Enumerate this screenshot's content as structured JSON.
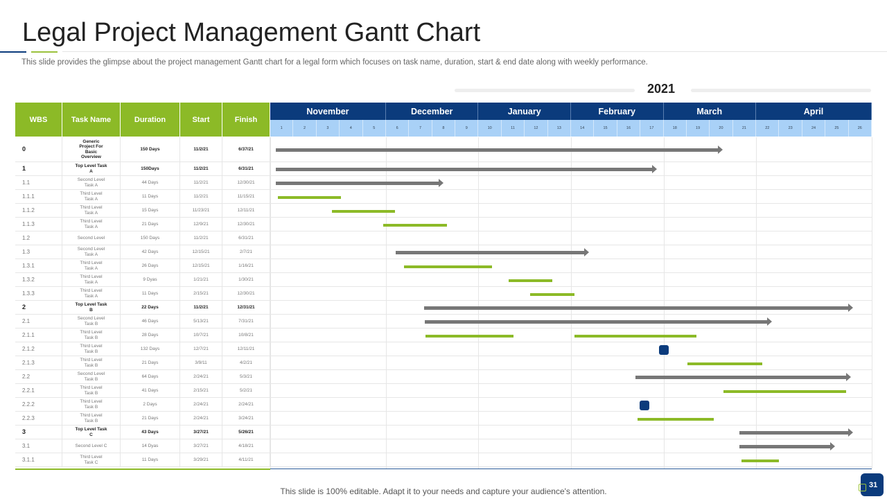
{
  "header": {
    "title": "Legal Project Management Gantt Chart",
    "subtitle": "This slide provides the glimpse about the project management Gantt chart for a legal form which focuses on task name, duration, start & end date along with weekly performance.",
    "year": "2021"
  },
  "footer": {
    "text": "This slide is 100% editable. Adapt it to your needs and capture your audience's attention.",
    "page": "31"
  },
  "colors": {
    "navy": "#0b3b7c",
    "green": "#8cba27",
    "week_bg": "#a9d1f7",
    "gray_bar": "#777777"
  },
  "table_headers": [
    "WBS",
    "Task Name",
    "Duration",
    "Start",
    "Finish"
  ],
  "chart_data": {
    "type": "bar",
    "orientation": "horizontal-gantt",
    "title": "2021",
    "x_unit": "week",
    "xlim": [
      1,
      27
    ],
    "months": [
      {
        "name": "November",
        "weeks": [
          1,
          2,
          3,
          4,
          5
        ]
      },
      {
        "name": "December",
        "weeks": [
          6,
          7,
          8,
          9
        ]
      },
      {
        "name": "January",
        "weeks": [
          10,
          11,
          12,
          13
        ]
      },
      {
        "name": "February",
        "weeks": [
          14,
          15,
          16,
          17
        ]
      },
      {
        "name": "March",
        "weeks": [
          18,
          19,
          20,
          21
        ]
      },
      {
        "name": "April",
        "weeks": [
          22,
          23,
          24,
          25,
          26
        ]
      }
    ],
    "tasks": [
      {
        "wbs": "0",
        "name": "Generic Project For Basic Overview",
        "duration": "150 Days",
        "start": "11/2/21",
        "finish": "6/37/21",
        "bold": true,
        "bars": [
          {
            "type": "summary",
            "from": 1.24,
            "to": 20.55
          }
        ]
      },
      {
        "wbs": "1",
        "name": "Top Level Task A",
        "duration": "150Days",
        "start": "11/2/21",
        "finish": "6/31/21",
        "bold": true,
        "bars": [
          {
            "type": "summary",
            "from": 1.24,
            "to": 17.7
          }
        ]
      },
      {
        "wbs": "1.1",
        "name": "Second Level Task A",
        "duration": "44 Days",
        "start": "11/2/21",
        "finish": "12/30/21",
        "bars": [
          {
            "type": "summary",
            "from": 1.24,
            "to": 8.5
          }
        ]
      },
      {
        "wbs": "1.1.1",
        "name": "Third Level Task A",
        "duration": "11 Days",
        "start": "11/2/21",
        "finish": "11/15/21",
        "bars": [
          {
            "type": "task",
            "from": 1.33,
            "to": 4.05
          }
        ]
      },
      {
        "wbs": "1.1.2",
        "name": "Third Level Task A",
        "duration": "15 Days",
        "start": "11/23/21",
        "finish": "12/11/21",
        "bars": [
          {
            "type": "task",
            "from": 3.66,
            "to": 6.39
          }
        ]
      },
      {
        "wbs": "1.1.3",
        "name": "Third Level Task A",
        "duration": "21 Days",
        "start": "12/9/21",
        "finish": "12/30/21",
        "bars": [
          {
            "type": "task",
            "from": 5.88,
            "to": 8.63
          }
        ]
      },
      {
        "wbs": "1.2",
        "name": "Second Level",
        "duration": "150 Days",
        "start": "11/2/21",
        "finish": "6/31/21",
        "bars": []
      },
      {
        "wbs": "1.3",
        "name": "Second Level Task A",
        "duration": "42 Days",
        "start": "12/15/21",
        "finish": "2/7/21",
        "bars": [
          {
            "type": "summary",
            "from": 6.42,
            "to": 14.77
          }
        ]
      },
      {
        "wbs": "1.3.1",
        "name": "Third Level Task A",
        "duration": "26 Days",
        "start": "12/15/21",
        "finish": "1/16/21",
        "bars": [
          {
            "type": "task",
            "from": 6.78,
            "to": 10.58
          }
        ]
      },
      {
        "wbs": "1.3.2",
        "name": "Third Level Task A",
        "duration": "9 Dyas",
        "start": "1/21/21",
        "finish": "1/30/21",
        "bars": [
          {
            "type": "task",
            "from": 11.3,
            "to": 13.19
          }
        ]
      },
      {
        "wbs": "1.3.3",
        "name": "Third Level Task A",
        "duration": "11 Days",
        "start": "2/15/21",
        "finish": "12/30/21",
        "bars": [
          {
            "type": "task",
            "from": 12.23,
            "to": 14.14
          }
        ]
      },
      {
        "wbs": "2",
        "name": "Top Level Task B",
        "duration": "22 Days",
        "start": "11/2/21",
        "finish": "12/31/21",
        "bold": true,
        "bars": [
          {
            "type": "summary",
            "from": 7.65,
            "to": 26.2
          }
        ]
      },
      {
        "wbs": "2.1",
        "name": "Second Level Task B",
        "duration": "46 Days",
        "start": "5/13/21",
        "finish": "7/31/21",
        "bars": [
          {
            "type": "summary",
            "from": 7.68,
            "to": 22.7
          }
        ]
      },
      {
        "wbs": "2.1.1",
        "name": "Third Level Task B",
        "duration": "28 Days",
        "start": "10/7/21",
        "finish": "10/8/21",
        "bars": [
          {
            "type": "task",
            "from": 7.71,
            "to": 11.52
          },
          {
            "type": "task",
            "from": 14.16,
            "to": 19.43
          }
        ]
      },
      {
        "wbs": "2.1.2",
        "name": "Third Level Task B",
        "duration": "132 Days",
        "start": "12/7/21",
        "finish": "12/11/21",
        "bars": [
          {
            "type": "milestone",
            "at": 18.0
          }
        ]
      },
      {
        "wbs": "2.1.3",
        "name": "Third Level Task B",
        "duration": "21 Days",
        "start": "3/9/11",
        "finish": "4/2/21",
        "bars": [
          {
            "type": "task",
            "from": 19.02,
            "to": 22.26
          }
        ]
      },
      {
        "wbs": "2.2",
        "name": "Second Level Task B",
        "duration": "64 Days",
        "start": "2/24/21",
        "finish": "5/3/21",
        "bars": [
          {
            "type": "summary",
            "from": 16.78,
            "to": 26.1
          }
        ]
      },
      {
        "wbs": "2.2.1",
        "name": "Third Level Task B",
        "duration": "41 Days",
        "start": "2/15/21",
        "finish": "5/2/21",
        "bars": [
          {
            "type": "task",
            "from": 20.6,
            "to": 25.9
          }
        ]
      },
      {
        "wbs": "2.2.2",
        "name": "Third Level Task B",
        "duration": "2 Days",
        "start": "2/24/21",
        "finish": "2/24/21",
        "bars": [
          {
            "type": "milestone",
            "at": 17.17
          }
        ]
      },
      {
        "wbs": "2.2.3",
        "name": "Third Level Task B",
        "duration": "21 Days",
        "start": "2/24/21",
        "finish": "3/24/21",
        "bars": [
          {
            "type": "task",
            "from": 16.87,
            "to": 20.16
          }
        ]
      },
      {
        "wbs": "3",
        "name": "Top Level Task C",
        "duration": "43 Days",
        "start": "3/27/21",
        "finish": "5/26/21",
        "bold": true,
        "bars": [
          {
            "type": "summary",
            "from": 21.27,
            "to": 26.18
          }
        ]
      },
      {
        "wbs": "3.1",
        "name": "Second Level C",
        "duration": "14 Dyas",
        "start": "3/27/21",
        "finish": "4/18/21",
        "bars": [
          {
            "type": "summary",
            "from": 21.27,
            "to": 25.4
          }
        ]
      },
      {
        "wbs": "3.1.1",
        "name": "Third Level Task C",
        "duration": "11 Days",
        "start": "3/29/21",
        "finish": "4/11/21",
        "bars": [
          {
            "type": "task",
            "from": 21.36,
            "to": 23.0
          }
        ]
      }
    ]
  }
}
